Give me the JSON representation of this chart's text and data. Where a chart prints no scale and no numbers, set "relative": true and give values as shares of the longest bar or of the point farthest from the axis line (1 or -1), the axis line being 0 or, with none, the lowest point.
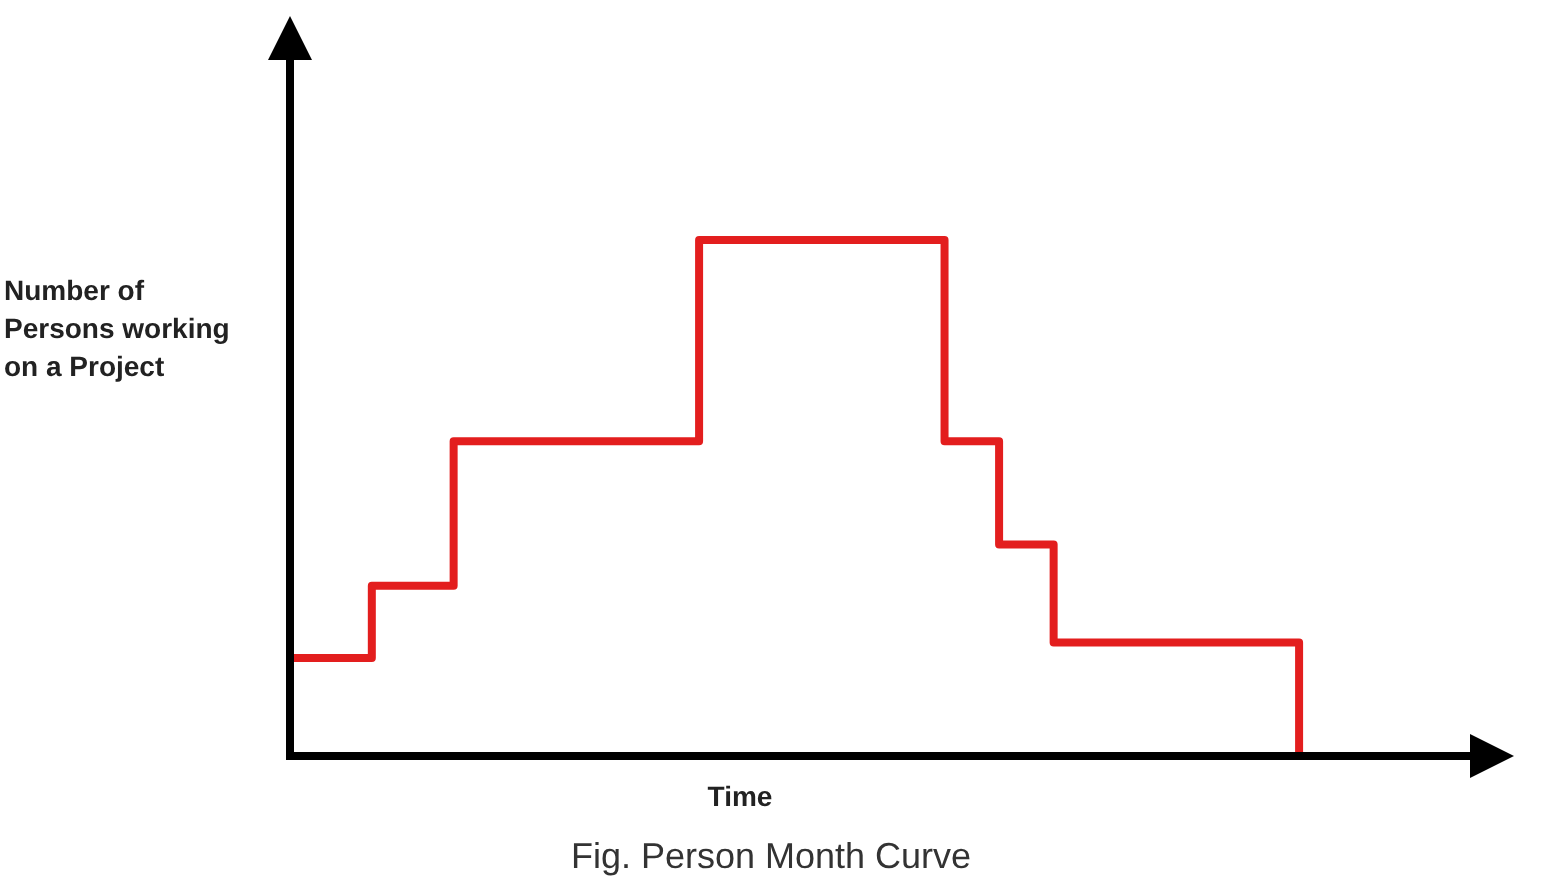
{
  "chart_data": {
    "type": "step",
    "title": "Fig. Person Month Curve",
    "xlabel": "Time",
    "ylabel": "Number of Persons working on a Project",
    "relative": true,
    "legend": false,
    "marker": "none",
    "line_style": "solid",
    "categories": [
      null,
      null,
      null,
      null,
      null,
      null,
      null,
      null,
      null,
      null,
      null,
      null,
      null,
      null,
      null,
      null,
      null,
      null,
      null,
      null,
      null,
      null,
      null,
      null,
      null,
      null,
      null,
      null,
      null,
      null,
      null,
      null,
      null,
      null,
      null,
      null,
      null,
      null,
      null,
      null,
      null,
      null,
      null,
      null,
      null
    ],
    "series": [
      {
        "color": "#e31e1e",
        "values": [
          0.19,
          0.19,
          0.19,
          0.19,
          0.33,
          0.33,
          0.33,
          0.61,
          0.61,
          0.61,
          0.61,
          0.61,
          0.61,
          0.61,
          0.61,
          0.61,
          1,
          1,
          1,
          1,
          1,
          1,
          1,
          1,
          1,
          0.61,
          0.61,
          0.41,
          0.41,
          0.22,
          0.22,
          0.22,
          0.22,
          0.22,
          0.22,
          0.22,
          0.22,
          0.22,
          0,
          null,
          null,
          null,
          null,
          null,
          null
        ]
      }
    ]
  }
}
